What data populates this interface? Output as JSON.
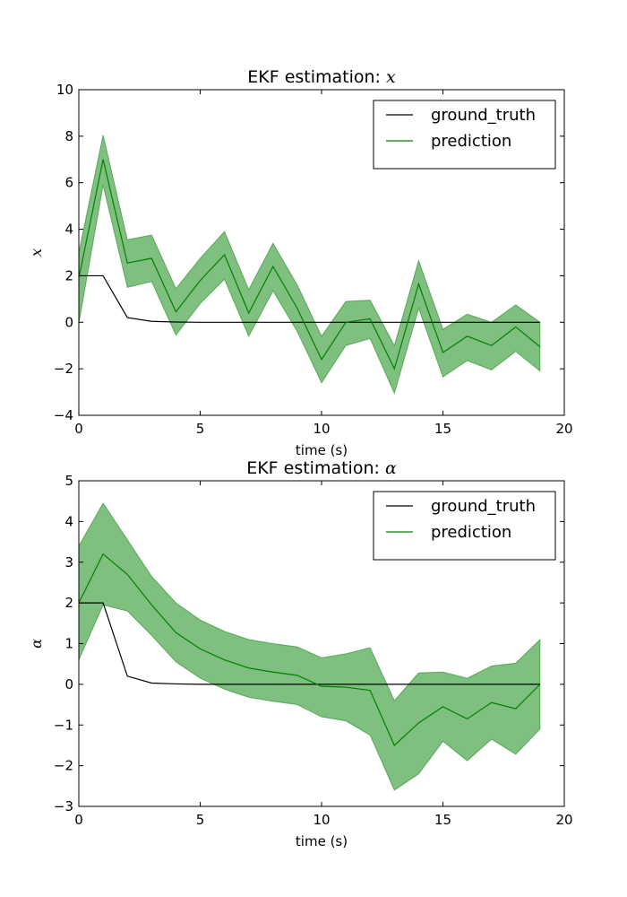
{
  "colors": {
    "ground_truth": "#000000",
    "prediction": "#008000",
    "band_fill": "#008000",
    "band_opacity": 0.5
  },
  "chart_data": [
    {
      "type": "line",
      "title_text": "EKF estimation: ",
      "title_var": "x",
      "xlabel": "time (s)",
      "ylabel": "x",
      "xlim": [
        0,
        20
      ],
      "ylim": [
        -4,
        10
      ],
      "xticks": [
        0,
        5,
        10,
        15,
        20
      ],
      "yticks": [
        -4,
        -2,
        0,
        2,
        4,
        6,
        8,
        10
      ],
      "legend_position": "top-right",
      "x": [
        0,
        1,
        2,
        3,
        4,
        5,
        6,
        7,
        8,
        9,
        10,
        11,
        12,
        13,
        14,
        15,
        16,
        17,
        18,
        19
      ],
      "series": [
        {
          "name": "ground_truth",
          "values": [
            2.0,
            2.0,
            0.2,
            0.04,
            0.01,
            0,
            0,
            0,
            0,
            0,
            0,
            0,
            0,
            0,
            0,
            0,
            0,
            0,
            0,
            0
          ]
        },
        {
          "name": "prediction",
          "values": [
            1.9,
            7.0,
            2.55,
            2.75,
            0.45,
            1.8,
            2.9,
            0.4,
            2.4,
            0.6,
            -1.6,
            0.0,
            0.15,
            -2.0,
            1.65,
            -1.3,
            -0.6,
            -1.0,
            -0.2,
            -1.05
          ],
          "band_lower": [
            -0.05,
            5.9,
            1.5,
            1.75,
            -0.55,
            0.8,
            1.85,
            -0.6,
            1.35,
            -0.4,
            -2.6,
            -1.0,
            -0.7,
            -3.05,
            0.6,
            -2.35,
            -1.65,
            -2.05,
            -1.25,
            -2.1
          ],
          "band_upper": [
            3.0,
            8.05,
            3.55,
            3.75,
            1.45,
            2.75,
            3.9,
            1.4,
            3.4,
            1.6,
            -0.6,
            0.9,
            0.95,
            -1.0,
            2.65,
            -0.3,
            0.35,
            0.0,
            0.75,
            0.0
          ]
        }
      ]
    },
    {
      "type": "line",
      "title_text": "EKF estimation: ",
      "title_var": "α",
      "xlabel": "time (s)",
      "ylabel": "α",
      "xlim": [
        0,
        20
      ],
      "ylim": [
        -3,
        5
      ],
      "xticks": [
        0,
        5,
        10,
        15,
        20
      ],
      "yticks": [
        -3,
        -2,
        -1,
        0,
        1,
        2,
        3,
        4,
        5
      ],
      "legend_position": "top-right",
      "x": [
        0,
        1,
        2,
        3,
        4,
        5,
        6,
        7,
        8,
        9,
        10,
        11,
        12,
        13,
        14,
        15,
        16,
        17,
        18,
        19
      ],
      "series": [
        {
          "name": "ground_truth",
          "values": [
            2.0,
            2.0,
            0.2,
            0.03,
            0.01,
            0,
            0,
            0,
            0,
            0,
            0,
            0,
            0,
            0,
            0,
            0,
            0,
            0,
            0,
            0
          ]
        },
        {
          "name": "prediction",
          "values": [
            2.0,
            3.2,
            2.7,
            1.95,
            1.27,
            0.87,
            0.6,
            0.4,
            0.3,
            0.22,
            -0.05,
            -0.07,
            -0.15,
            -1.5,
            -0.95,
            -0.55,
            -0.85,
            -0.45,
            -0.6,
            0.0
          ],
          "band_lower": [
            0.6,
            1.95,
            1.8,
            1.2,
            0.55,
            0.15,
            -0.12,
            -0.32,
            -0.42,
            -0.5,
            -0.8,
            -0.9,
            -1.25,
            -2.6,
            -2.2,
            -1.4,
            -1.88,
            -1.35,
            -1.72,
            -1.1
          ],
          "band_upper": [
            3.4,
            4.45,
            3.55,
            2.65,
            2.0,
            1.58,
            1.3,
            1.1,
            1.0,
            0.92,
            0.65,
            0.75,
            0.9,
            -0.4,
            0.28,
            0.3,
            0.15,
            0.45,
            0.52,
            1.1
          ]
        }
      ]
    }
  ]
}
